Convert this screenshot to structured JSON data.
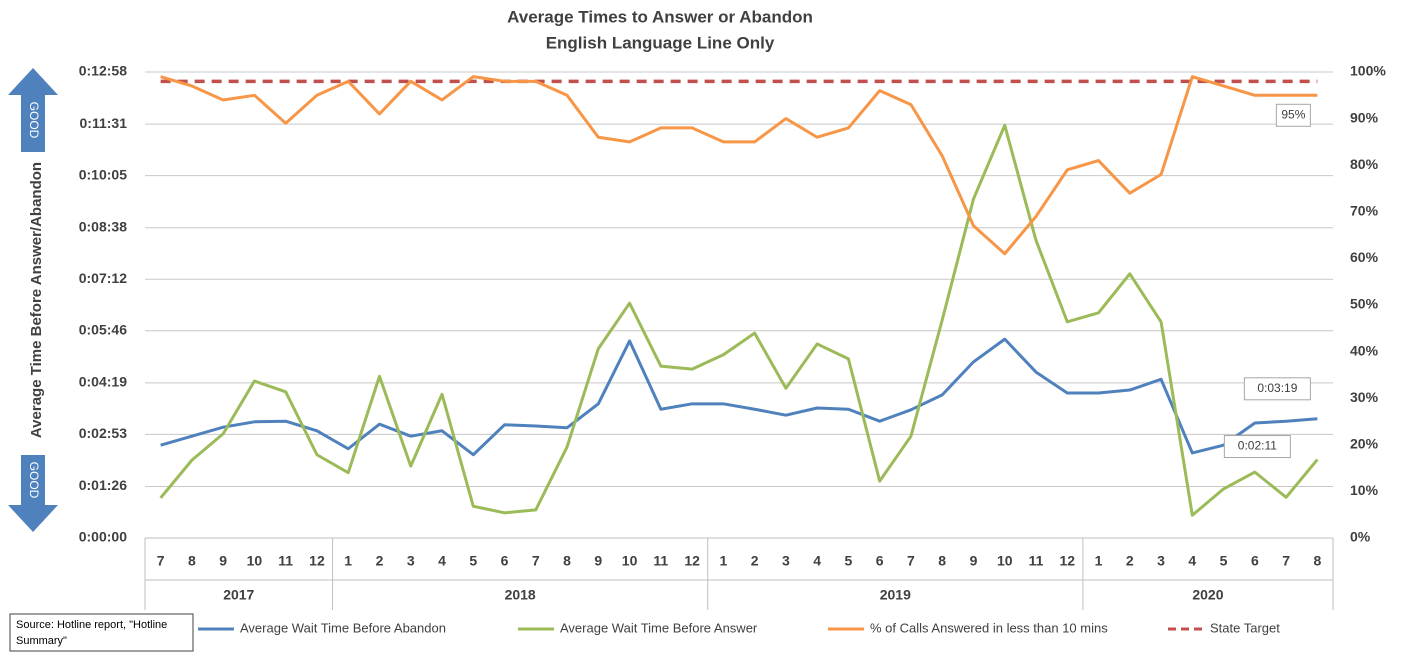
{
  "chart_data": {
    "type": "line",
    "title": "Average Times to Answer or Abandon",
    "subtitle": "English Language Line Only",
    "y_label": "Average Time Before Answer/Abandon",
    "good_labels": [
      "GOOD",
      "GOOD"
    ],
    "source": [
      "Source: Hotline report, \"Hotline",
      "Summary\""
    ],
    "category_groups": [
      {
        "label": "2017",
        "categories": [
          "7",
          "8",
          "9",
          "10",
          "11",
          "12"
        ]
      },
      {
        "label": "2018",
        "categories": [
          "1",
          "2",
          "3",
          "4",
          "5",
          "6",
          "7",
          "8",
          "9",
          "10",
          "11",
          "12"
        ]
      },
      {
        "label": "2019",
        "categories": [
          "1",
          "2",
          "3",
          "4",
          "5",
          "6",
          "7",
          "8",
          "9",
          "10",
          "11",
          "12"
        ]
      },
      {
        "label": "2020",
        "categories": [
          "1",
          "2",
          "3",
          "4",
          "5",
          "6",
          "7",
          "8"
        ]
      }
    ],
    "ylim": [
      0,
      778
    ],
    "yticks": [
      {
        "value": 0,
        "label": "0:00:00"
      },
      {
        "value": 86,
        "label": "0:01:26"
      },
      {
        "value": 173,
        "label": "0:02:53"
      },
      {
        "value": 259,
        "label": "0:04:19"
      },
      {
        "value": 346,
        "label": "0:05:46"
      },
      {
        "value": 432,
        "label": "0:07:12"
      },
      {
        "value": 518,
        "label": "0:08:38"
      },
      {
        "value": 605,
        "label": "0:10:05"
      },
      {
        "value": 691,
        "label": "0:11:31"
      },
      {
        "value": 778,
        "label": "0:12:58"
      }
    ],
    "y2lim": [
      0,
      100
    ],
    "y2ticks": [
      {
        "value": 0,
        "label": "0%"
      },
      {
        "value": 10,
        "label": "10%"
      },
      {
        "value": 20,
        "label": "20%"
      },
      {
        "value": 30,
        "label": "30%"
      },
      {
        "value": 40,
        "label": "40%"
      },
      {
        "value": 50,
        "label": "50%"
      },
      {
        "value": 60,
        "label": "60%"
      },
      {
        "value": 70,
        "label": "70%"
      },
      {
        "value": 80,
        "label": "80%"
      },
      {
        "value": 90,
        "label": "90%"
      },
      {
        "value": 100,
        "label": "100%"
      }
    ],
    "grid": true,
    "series": [
      {
        "name": "Average Wait Time Before Abandon",
        "color": "#4f81bd",
        "axis": "y",
        "values": [
          155,
          170,
          185,
          194,
          195,
          179,
          149,
          190,
          170,
          179,
          139,
          189,
          187,
          184,
          224,
          329,
          215,
          224,
          224,
          215,
          205,
          217,
          215,
          195,
          214,
          239,
          294,
          332,
          277,
          242,
          242,
          247,
          265,
          142,
          155,
          192,
          195,
          199
        ],
        "value_labels": [
          null,
          null,
          null,
          null,
          null,
          null,
          null,
          null,
          null,
          null,
          null,
          null,
          null,
          null,
          null,
          null,
          null,
          null,
          null,
          null,
          null,
          null,
          null,
          null,
          null,
          null,
          null,
          null,
          null,
          null,
          null,
          null,
          null,
          null,
          null,
          null,
          null,
          "0:03:19"
        ]
      },
      {
        "name": "Average Wait Time Before Answer",
        "color": "#9bbb59",
        "axis": "y",
        "values": [
          67,
          130,
          174,
          262,
          244,
          139,
          109,
          270,
          120,
          240,
          53,
          42,
          47,
          152,
          316,
          392,
          287,
          282,
          306,
          342,
          250,
          324,
          299,
          95,
          170,
          364,
          566,
          689,
          497,
          361,
          376,
          441,
          361,
          38,
          82,
          110,
          68,
          131
        ],
        "value_labels": [
          null,
          null,
          null,
          null,
          null,
          null,
          null,
          null,
          null,
          null,
          null,
          null,
          null,
          null,
          null,
          null,
          null,
          null,
          null,
          null,
          null,
          null,
          null,
          null,
          null,
          null,
          null,
          null,
          null,
          null,
          null,
          null,
          null,
          null,
          null,
          null,
          null,
          "0:02:11"
        ]
      },
      {
        "name": "% of Calls Answered in less than 10 mins",
        "color": "#f79646",
        "axis": "y2",
        "values": [
          99,
          97,
          94,
          95,
          89,
          95,
          98,
          91,
          98,
          94,
          99,
          98,
          98,
          95,
          86,
          85,
          88,
          88,
          85,
          85,
          90,
          86,
          88,
          96,
          93,
          82,
          67,
          61,
          69,
          79,
          81,
          74,
          78,
          99,
          97,
          95,
          95,
          95
        ],
        "value_labels": [
          null,
          null,
          null,
          null,
          null,
          null,
          null,
          null,
          null,
          null,
          null,
          null,
          null,
          null,
          null,
          null,
          null,
          null,
          null,
          null,
          null,
          null,
          null,
          null,
          null,
          null,
          null,
          null,
          null,
          null,
          null,
          null,
          null,
          null,
          null,
          null,
          null,
          "95%"
        ]
      }
    ],
    "target": {
      "name": "State Target",
      "value": 98,
      "color": "#c0504d",
      "axis": "y2"
    }
  }
}
